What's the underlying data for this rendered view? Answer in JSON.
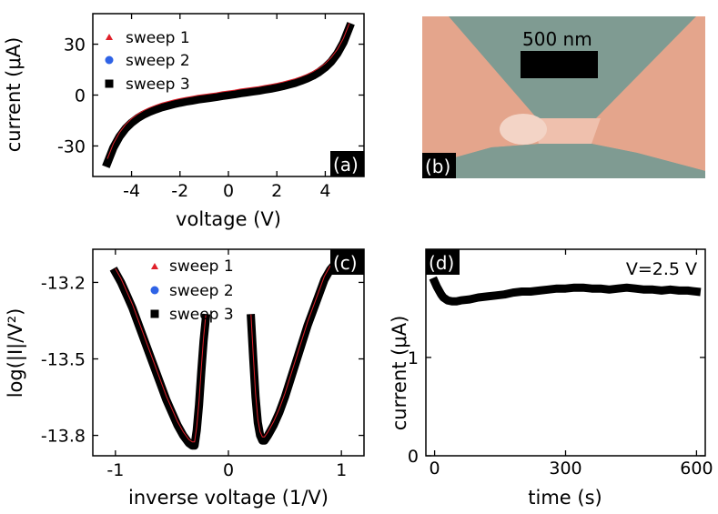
{
  "colors": {
    "curve": "#000000",
    "sweep1": "#e0202a",
    "sweep2": "#2f63e6",
    "sweep3": "#000000",
    "sem_bg": "#7f9b92",
    "sem_metal": "#e4a58c",
    "sem_light": "#f3d4c6"
  },
  "chart_data": [
    {
      "id": "a",
      "type": "line",
      "panel_label": "(a)",
      "xlabel": "voltage (V)",
      "ylabel": "current (μA)",
      "xlim": [
        -5.6,
        5.6
      ],
      "ylim": [
        -48,
        48
      ],
      "xticks": [
        -4,
        -2,
        0,
        2,
        4
      ],
      "xtick_labels": [
        "-4",
        "-2",
        "0",
        "2",
        "4"
      ],
      "yticks": [
        -30,
        0,
        30
      ],
      "ytick_labels": [
        "-30",
        "0",
        "30"
      ],
      "legend": [
        {
          "marker": "triangle",
          "label": "sweep 1"
        },
        {
          "marker": "circle",
          "label": "sweep 2"
        },
        {
          "marker": "square",
          "label": "sweep 3"
        }
      ],
      "series": [
        {
          "name": "sweep 3",
          "x": [
            -5.0,
            -4.75,
            -4.5,
            -4.25,
            -4.0,
            -3.75,
            -3.5,
            -3.25,
            -3.0,
            -2.75,
            -2.5,
            -2.25,
            -2.0,
            -1.75,
            -1.5,
            -1.25,
            -1.0,
            -0.75,
            -0.5,
            -0.25,
            0.0,
            0.25,
            0.5,
            0.75,
            1.0,
            1.25,
            1.5,
            1.75,
            2.0,
            2.25,
            2.5,
            2.75,
            3.0,
            3.25,
            3.5,
            3.75,
            4.0,
            4.25,
            4.5,
            4.75,
            5.0
          ],
          "y": [
            -40,
            -31,
            -24.5,
            -19.8,
            -16.3,
            -13.6,
            -11.5,
            -9.8,
            -8.4,
            -7.2,
            -6.2,
            -5.3,
            -4.5,
            -3.8,
            -3.2,
            -2.6,
            -2.1,
            -1.6,
            -1.1,
            -0.5,
            0,
            0.5,
            1.1,
            1.6,
            2.1,
            2.6,
            3.2,
            3.8,
            4.5,
            5.3,
            6.2,
            7.2,
            8.4,
            9.8,
            11.5,
            13.6,
            16.3,
            19.8,
            24.5,
            31,
            40
          ]
        }
      ]
    },
    {
      "id": "b",
      "type": "image",
      "panel_label": "(b)",
      "scale_bar": "500 nm"
    },
    {
      "id": "c",
      "type": "scatter",
      "panel_label": "(c)",
      "xlabel": "inverse voltage (1/V)",
      "ylabel": "log(|I|/V²)",
      "xlim": [
        -1.2,
        1.2
      ],
      "ylim": [
        -13.88,
        -13.07
      ],
      "xticks": [
        -1,
        0,
        1
      ],
      "xtick_labels": [
        "-1",
        "0",
        "1"
      ],
      "yticks": [
        -13.2,
        -13.5,
        -13.8
      ],
      "ytick_labels": [
        "-13.2",
        "-13.5",
        "-13.8"
      ],
      "legend": [
        {
          "marker": "triangle",
          "label": "sweep 1"
        },
        {
          "marker": "circle",
          "label": "sweep 2"
        },
        {
          "marker": "square",
          "label": "sweep 3"
        }
      ],
      "series": [
        {
          "name": "sweep 3 (V<0)",
          "x": [
            -1.0,
            -0.95,
            -0.9,
            -0.85,
            -0.8,
            -0.75,
            -0.7,
            -0.65,
            -0.6,
            -0.55,
            -0.5,
            -0.45,
            -0.4,
            -0.35,
            -0.32,
            -0.3,
            -0.28,
            -0.26,
            -0.24,
            -0.22,
            -0.2
          ],
          "y": [
            -13.16,
            -13.2,
            -13.25,
            -13.3,
            -13.36,
            -13.42,
            -13.48,
            -13.54,
            -13.6,
            -13.66,
            -13.71,
            -13.76,
            -13.8,
            -13.83,
            -13.84,
            -13.84,
            -13.78,
            -13.68,
            -13.55,
            -13.43,
            -13.34
          ]
        },
        {
          "name": "sweep 3 (V>0)",
          "x": [
            0.2,
            0.22,
            0.24,
            0.26,
            0.28,
            0.3,
            0.32,
            0.35,
            0.4,
            0.45,
            0.5,
            0.55,
            0.6,
            0.65,
            0.7,
            0.75,
            0.8,
            0.85,
            0.9,
            0.92
          ],
          "y": [
            -13.34,
            -13.5,
            -13.65,
            -13.75,
            -13.8,
            -13.82,
            -13.82,
            -13.8,
            -13.76,
            -13.71,
            -13.65,
            -13.58,
            -13.51,
            -13.44,
            -13.37,
            -13.31,
            -13.25,
            -13.19,
            -13.15,
            -13.14
          ]
        }
      ]
    },
    {
      "id": "d",
      "type": "scatter",
      "panel_label": "(d)",
      "xlabel": "time (s)",
      "ylabel": "current (μA)",
      "annotation": "V=2.5 V",
      "xlim": [
        -20,
        620
      ],
      "ylim": [
        0,
        2.1
      ],
      "xticks": [
        0,
        300,
        600
      ],
      "xtick_labels": [
        "0",
        "300",
        "600"
      ],
      "yticks": [
        0,
        1
      ],
      "ytick_labels": [
        "0",
        "1"
      ],
      "series": [
        {
          "name": "current",
          "x": [
            0,
            5,
            10,
            15,
            20,
            30,
            40,
            50,
            60,
            80,
            100,
            120,
            140,
            160,
            180,
            200,
            220,
            240,
            260,
            280,
            300,
            320,
            340,
            360,
            380,
            400,
            420,
            440,
            460,
            480,
            500,
            520,
            540,
            560,
            580,
            600
          ],
          "y": [
            1.77,
            1.72,
            1.68,
            1.64,
            1.61,
            1.58,
            1.57,
            1.57,
            1.58,
            1.59,
            1.61,
            1.62,
            1.63,
            1.64,
            1.66,
            1.67,
            1.67,
            1.68,
            1.69,
            1.7,
            1.7,
            1.71,
            1.71,
            1.7,
            1.7,
            1.69,
            1.7,
            1.71,
            1.7,
            1.69,
            1.69,
            1.68,
            1.69,
            1.68,
            1.68,
            1.67
          ]
        }
      ]
    }
  ]
}
